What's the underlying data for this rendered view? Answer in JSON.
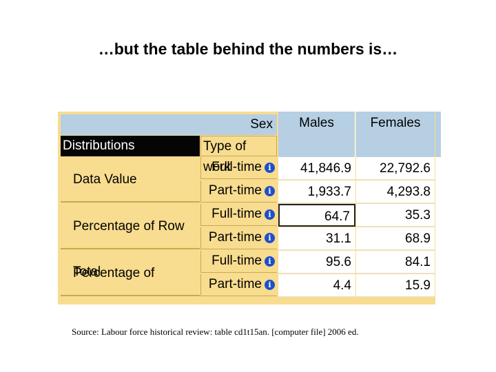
{
  "slide": {
    "title": "…but the table behind the numbers is…",
    "source": "Source: Labour force historical review: table cd1t15an. [computer file] 2006 ed."
  },
  "table": {
    "header_sex": "Sex",
    "header_distributions": "Distributions",
    "header_type_of_work": "Type of work",
    "columns": [
      "Males",
      "Females"
    ],
    "info_icon_glyph": "i",
    "groups": [
      {
        "label": "Data Value",
        "rows": [
          {
            "type": "Full-time",
            "males": "41,846.9",
            "females": "22,792.6"
          },
          {
            "type": "Part-time",
            "males": "1,933.7",
            "females": "4,293.8"
          }
        ]
      },
      {
        "label": "Percentage of Row Total",
        "rows": [
          {
            "type": "Full-time",
            "males": "64.7",
            "females": "35.3"
          },
          {
            "type": "Part-time",
            "males": "31.1",
            "females": "68.9"
          }
        ]
      },
      {
        "label": "Percentage of Column Total",
        "rows": [
          {
            "type": "Full-time",
            "males": "95.6",
            "females": "84.1"
          },
          {
            "type": "Part-time",
            "males": "4.4",
            "females": "15.9"
          }
        ]
      }
    ]
  },
  "colors": {
    "header_blue": "#b6cfe3",
    "label_gold": "#f8dc8f",
    "info_icon": "#1f4fc9"
  }
}
